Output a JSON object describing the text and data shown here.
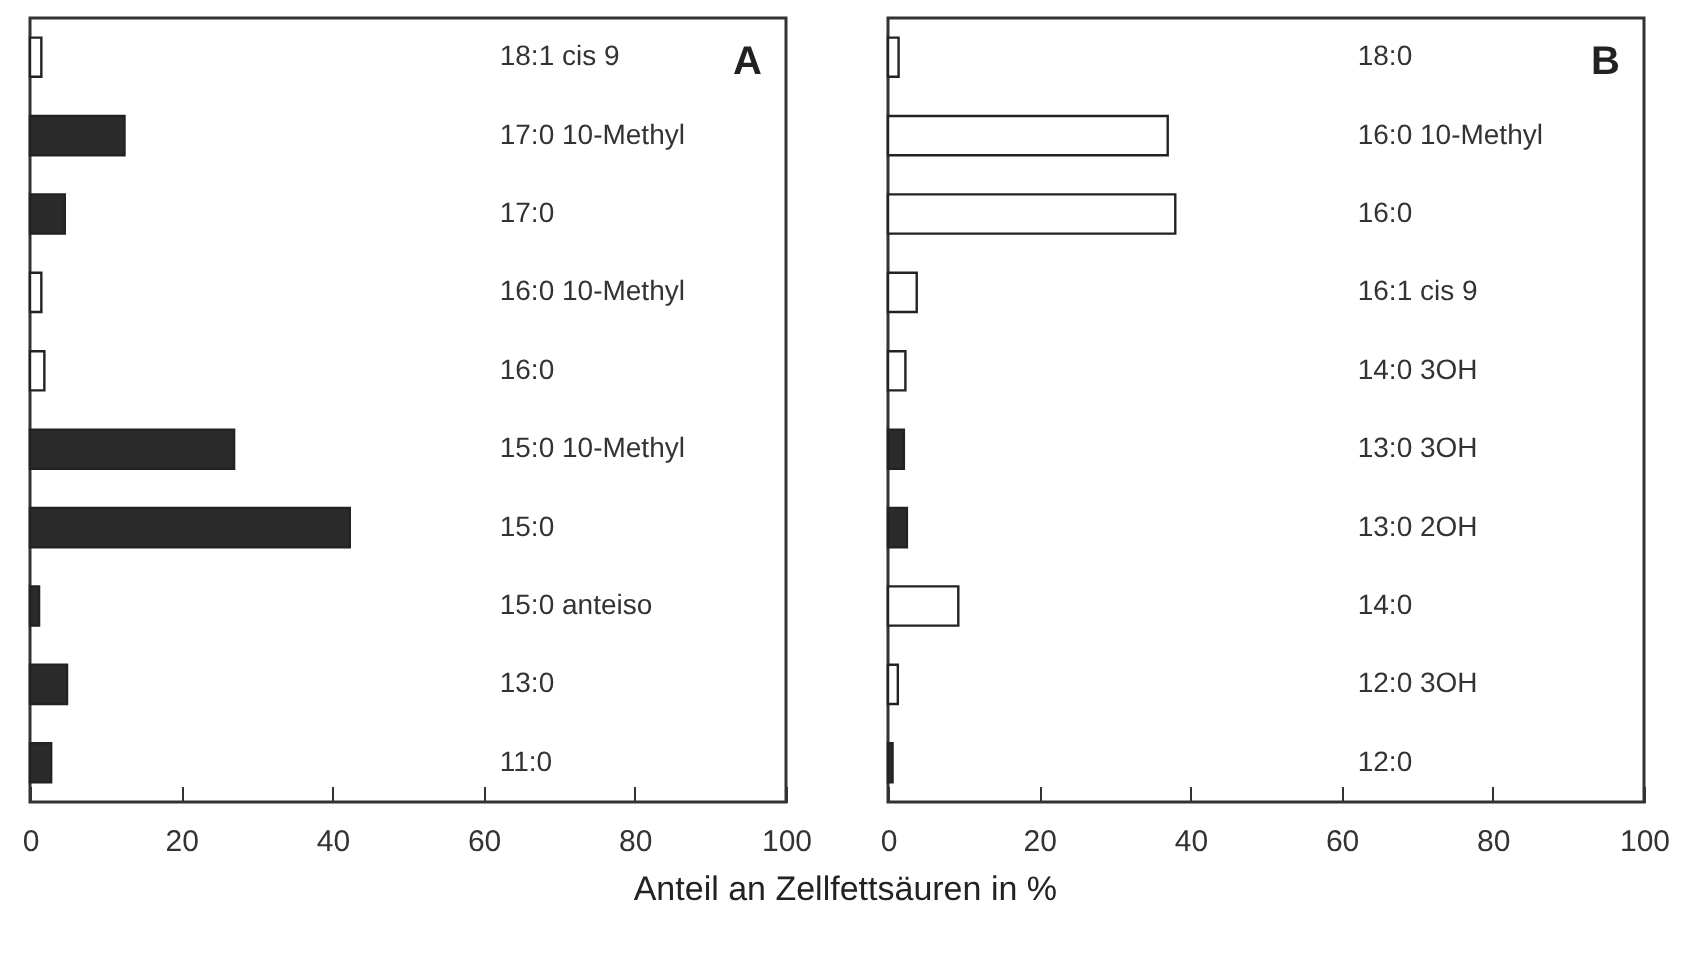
{
  "chart_data": [
    {
      "type": "bar",
      "orientation": "horizontal",
      "title": "A",
      "xlabel": "Anteil an Zellfettsäuren in %",
      "categories": [
        "18:1 cis 9",
        "17:0 10-Methyl",
        "17:0",
        "16:0 10-Methyl",
        "16:0",
        "15:0 10-Methyl",
        "15:0",
        "15:0 anteiso",
        "13:0",
        "11:0"
      ],
      "values": [
        1.5,
        12.5,
        4.6,
        1.5,
        1.9,
        27,
        42.3,
        1.2,
        4.9,
        2.8
      ],
      "colors": [
        "#ffffff",
        "#2b2b2b",
        "#2b2b2b",
        "#ffffff",
        "#ffffff",
        "#2b2b2b",
        "#2b2b2b",
        "#2b2b2b",
        "#2b2b2b",
        "#2b2b2b"
      ],
      "xlim": [
        0,
        100
      ],
      "xticks": [
        0,
        20,
        40,
        60,
        80,
        100
      ],
      "grid": false
    },
    {
      "type": "bar",
      "orientation": "horizontal",
      "title": "B",
      "categories": [
        "18:0",
        "16:0 10-Methyl",
        "16:0",
        "16:1 cis 9",
        "14:0 3OH",
        "13:0 3OH",
        "13:0 2OH",
        "14:0",
        "12:0 3OH",
        "12:0"
      ],
      "values": [
        1.4,
        37,
        38,
        3.8,
        2.3,
        2.1,
        2.5,
        9.3,
        1.3,
        0.6
      ],
      "colors": [
        "#ffffff",
        "#ffffff",
        "#ffffff",
        "#ffffff",
        "#ffffff",
        "#2b2b2b",
        "#2b2b2b",
        "#ffffff",
        "#ffffff",
        "#2b2b2b"
      ],
      "xlim": [
        0,
        100
      ],
      "xticks": [
        0,
        20,
        40,
        60,
        80,
        100
      ],
      "grid": false
    }
  ]
}
